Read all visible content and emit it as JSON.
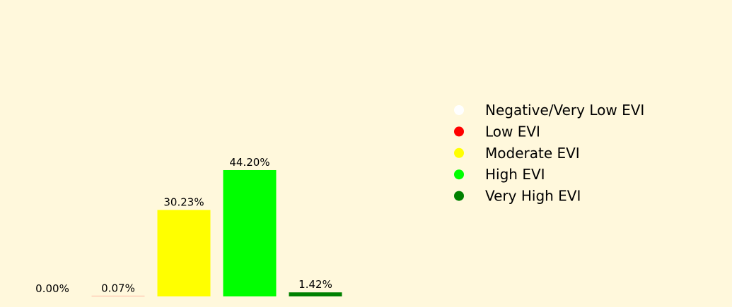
{
  "chart_data": {
    "type": "bar",
    "categories": [
      "Negative/Very Low EVI",
      "Low EVI",
      "Moderate EVI",
      "High EVI",
      "Very High EVI"
    ],
    "values": [
      0.0,
      0.07,
      30.23,
      44.2,
      1.42
    ],
    "data_labels": [
      "0.00%",
      "0.07%",
      "30.23%",
      "44.20%",
      "1.42%"
    ],
    "colors": [
      "#ffffff",
      "#ff0000",
      "#ffff00",
      "#00ff00",
      "#008000"
    ],
    "ylim": [
      0,
      72
    ],
    "grid": false,
    "axes_visible": false,
    "legend": {
      "placement": "right",
      "entries": [
        "Negative/Very Low EVI",
        "Low EVI",
        "Moderate EVI",
        "High EVI",
        "Very High EVI"
      ]
    },
    "title": "",
    "xlabel": "",
    "ylabel": ""
  },
  "colors": {
    "background": "#fff8dc"
  }
}
